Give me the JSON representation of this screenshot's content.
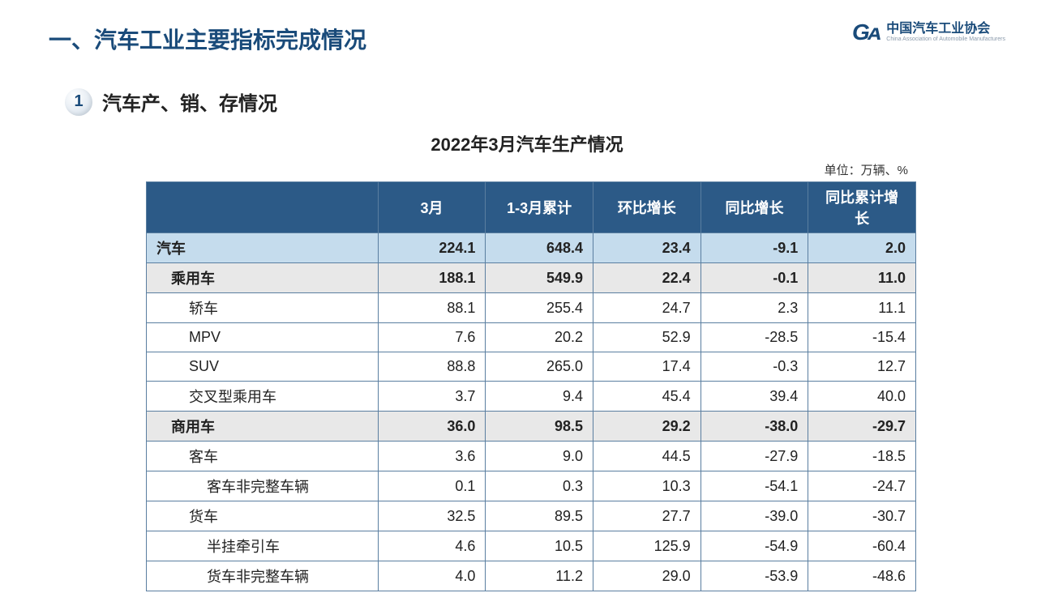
{
  "header": {
    "page_title": "一、汽车工业主要指标完成情况",
    "logo_mark": "Gᴀ",
    "logo_cn": "中国汽车工业协会",
    "logo_en": "China Association of Automobile Manufacturers"
  },
  "section": {
    "bullet_number": "1",
    "section_title": "汽车产、销、存情况"
  },
  "table": {
    "title": "2022年3月汽车生产情况",
    "unit_label": "单位：万辆、%",
    "header_bg": "#2c5a87",
    "header_fg": "#ffffff",
    "border_color": "#5a7ea0",
    "row_bg_lvl0": "#c5dced",
    "row_bg_lvl1": "#e8e8e8",
    "row_bg_lvl2": "#ffffff",
    "fontsize": 18,
    "columns": [
      "",
      "3月",
      "1-3月累计",
      "环比增长",
      "同比增长",
      "同比累计增长"
    ],
    "rows": [
      {
        "level": 0,
        "label": "汽车",
        "values": [
          "224.1",
          "648.4",
          "23.4",
          "-9.1",
          "2.0"
        ]
      },
      {
        "level": 1,
        "label": "乘用车",
        "values": [
          "188.1",
          "549.9",
          "22.4",
          "-0.1",
          "11.0"
        ]
      },
      {
        "level": 2,
        "label": "轿车",
        "values": [
          "88.1",
          "255.4",
          "24.7",
          "2.3",
          "11.1"
        ]
      },
      {
        "level": 2,
        "label": "MPV",
        "values": [
          "7.6",
          "20.2",
          "52.9",
          "-28.5",
          "-15.4"
        ]
      },
      {
        "level": 2,
        "label": "SUV",
        "values": [
          "88.8",
          "265.0",
          "17.4",
          "-0.3",
          "12.7"
        ]
      },
      {
        "level": 2,
        "label": "交叉型乘用车",
        "values": [
          "3.7",
          "9.4",
          "45.4",
          "39.4",
          "40.0"
        ]
      },
      {
        "level": 1,
        "label": "商用车",
        "values": [
          "36.0",
          "98.5",
          "29.2",
          "-38.0",
          "-29.7"
        ]
      },
      {
        "level": 2,
        "label": "客车",
        "values": [
          "3.6",
          "9.0",
          "44.5",
          "-27.9",
          "-18.5"
        ]
      },
      {
        "level": 3,
        "label": "客车非完整车辆",
        "values": [
          "0.1",
          "0.3",
          "10.3",
          "-54.1",
          "-24.7"
        ]
      },
      {
        "level": 2,
        "label": "货车",
        "values": [
          "32.5",
          "89.5",
          "27.7",
          "-39.0",
          "-30.7"
        ]
      },
      {
        "level": 3,
        "label": "半挂牵引车",
        "values": [
          "4.6",
          "10.5",
          "125.9",
          "-54.9",
          "-60.4"
        ]
      },
      {
        "level": 3,
        "label": "货车非完整车辆",
        "values": [
          "4.0",
          "11.2",
          "29.0",
          "-53.9",
          "-48.6"
        ]
      }
    ]
  }
}
